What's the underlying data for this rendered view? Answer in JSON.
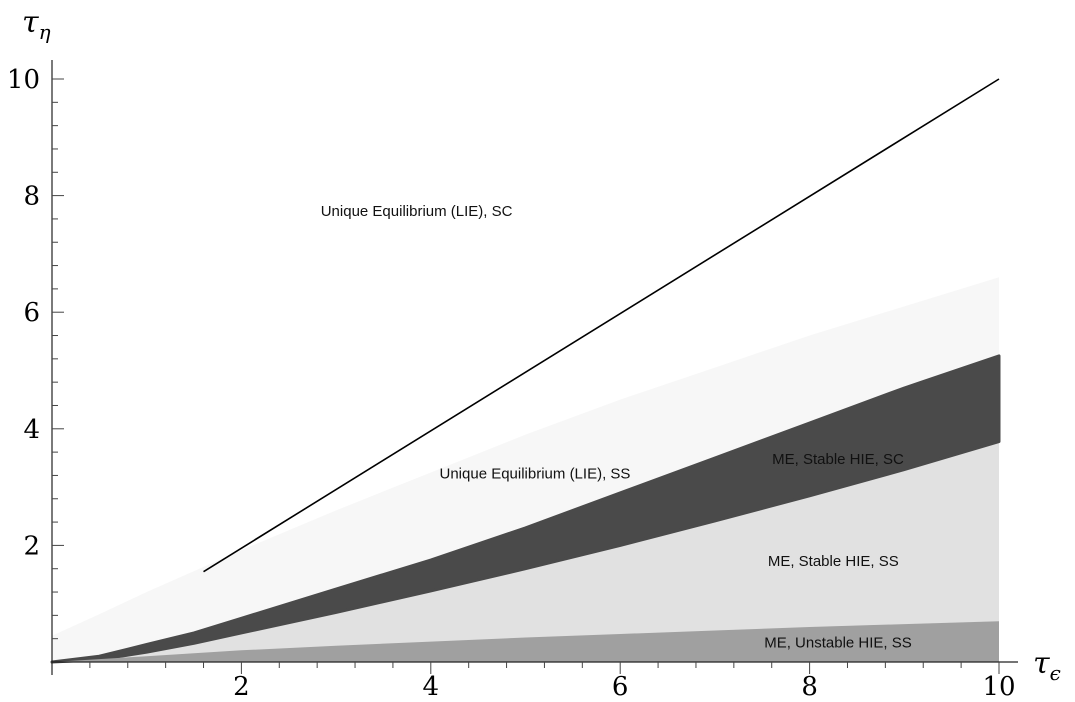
{
  "chart_data": {
    "type": "area",
    "xlabel": "τ",
    "xlabel_sub": "ϵ",
    "ylabel": "τ",
    "ylabel_sub": "η",
    "xlim": [
      0,
      10
    ],
    "ylim": [
      0,
      10
    ],
    "x_ticks": [
      2,
      4,
      6,
      8,
      10
    ],
    "y_ticks": [
      2,
      4,
      6,
      8,
      10
    ],
    "x_minor_step": 0.4,
    "y_minor_step": 0.4,
    "grid": false,
    "colors": {
      "light_region": "#f7f7f7",
      "dark_band": "#4a4a4a",
      "mid_region": "#e1e1e1",
      "bottom_region": "#a0a0a0",
      "line": "#000000"
    },
    "line": {
      "name": "",
      "x": [
        1.6,
        10
      ],
      "y": [
        1.55,
        10
      ]
    },
    "boundaries": {
      "x": [
        0,
        0.5,
        1,
        1.5,
        2,
        3,
        4,
        5,
        6,
        7,
        8,
        9,
        10
      ],
      "light_upper": [
        0.45,
        0.82,
        1.2,
        1.56,
        1.92,
        2.6,
        3.25,
        3.9,
        4.5,
        5.05,
        5.6,
        6.1,
        6.6
      ],
      "dark_upper": [
        0,
        0.1,
        0.3,
        0.5,
        0.75,
        1.25,
        1.75,
        2.3,
        2.9,
        3.5,
        4.1,
        4.7,
        5.25
      ],
      "dark_lower": [
        0,
        0.04,
        0.17,
        0.32,
        0.5,
        0.85,
        1.22,
        1.6,
        2.0,
        2.42,
        2.85,
        3.3,
        3.78
      ],
      "bottom_upper": [
        0,
        0.05,
        0.1,
        0.15,
        0.2,
        0.28,
        0.35,
        0.42,
        0.48,
        0.54,
        0.6,
        0.65,
        0.7
      ]
    },
    "region_labels": [
      {
        "text": "Unique Equilibrium (LIE), SC",
        "x": 3.85,
        "y": 7.65
      },
      {
        "text": "Unique Equilibrium (LIE), SS",
        "x": 5.1,
        "y": 3.15
      },
      {
        "text": "ME, Stable HIE, SC",
        "x": 8.3,
        "y": 3.4
      },
      {
        "text": "ME, Stable HIE, SS",
        "x": 8.25,
        "y": 1.65
      },
      {
        "text": "ME, Unstable HIE, SS",
        "x": 8.3,
        "y": 0.25
      }
    ]
  }
}
